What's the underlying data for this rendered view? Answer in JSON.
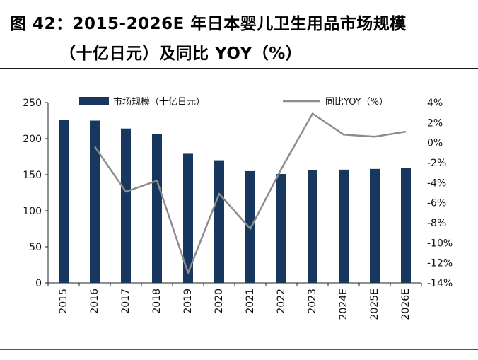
{
  "title": {
    "line1": "图 42：2015-2026E 年日本婴儿卫生用品市场规模",
    "line2": "（十亿日元）及同比 YOY（%）"
  },
  "chart_data": {
    "type": "bar+line",
    "categories": [
      "2015",
      "2016",
      "2017",
      "2018",
      "2019",
      "2020",
      "2021",
      "2022",
      "2023",
      "2024E",
      "2025E",
      "2026E"
    ],
    "series": [
      {
        "name": "市场规模（十亿日元）",
        "type": "bar",
        "axis": "left",
        "color": "#17375e",
        "values": [
          226,
          225,
          214,
          206,
          179,
          170,
          155,
          151,
          156,
          157,
          158,
          159
        ]
      },
      {
        "name": "同比YOY（%）",
        "type": "line",
        "axis": "right",
        "color": "#8c8c8c",
        "values": [
          null,
          -0.4,
          -4.9,
          -3.8,
          -13.0,
          -5.1,
          -8.6,
          -2.6,
          2.9,
          0.8,
          0.6,
          1.1
        ]
      }
    ],
    "left_axis": {
      "ylim": [
        0,
        250
      ],
      "ticks": [
        0,
        50,
        100,
        150,
        200,
        250
      ]
    },
    "right_axis": {
      "ylim": [
        -14,
        4
      ],
      "ticks": [
        4,
        2,
        0,
        -2,
        -4,
        -6,
        -8,
        -10,
        -12,
        -14
      ],
      "tick_labels": [
        "4%",
        "2%",
        "0%",
        "-2%",
        "-4%",
        "-6%",
        "-8%",
        "-10%",
        "-12%",
        "-14%"
      ]
    },
    "legend": {
      "position": "top",
      "bar_label": "市场规模（十亿日元）",
      "line_label": "同比YOY（%）"
    },
    "grid": false
  }
}
